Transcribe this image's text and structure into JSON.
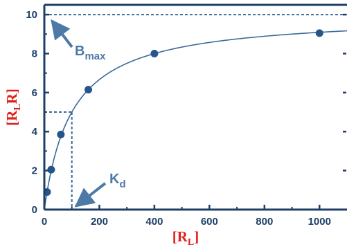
{
  "chart_data": {
    "type": "scatter",
    "title": "",
    "xlabel": {
      "main": "[R",
      "sub": "L",
      "end": "]"
    },
    "ylabel": {
      "main": "[R",
      "sub": "L",
      "end": "R]"
    },
    "xlim": [
      0,
      1100
    ],
    "ylim": [
      0,
      10.5
    ],
    "x_ticks": [
      0,
      200,
      400,
      600,
      800,
      1000
    ],
    "y_ticks": [
      0,
      2,
      4,
      6,
      8,
      10
    ],
    "x_tick_labels": [
      "0",
      "200",
      "400",
      "600",
      "800",
      "1000"
    ],
    "y_tick_labels": [
      "0",
      "2",
      "4",
      "6",
      "8",
      "10"
    ],
    "grid": false,
    "series": [
      {
        "points": [
          {
            "x": 10,
            "y": 0.9
          },
          {
            "x": 25,
            "y": 2.05
          },
          {
            "x": 60,
            "y": 3.85
          },
          {
            "x": 160,
            "y": 6.15
          },
          {
            "x": 400,
            "y": 8.0
          },
          {
            "x": 1000,
            "y": 9.05
          }
        ]
      }
    ],
    "fit_curve": {
      "model": "Bmax*x/(Kd+x)",
      "Bmax": 10,
      "Kd": 100
    },
    "reference_lines": {
      "bmax_y": 10,
      "half_y": 5,
      "kd_x": 100
    },
    "annotations": [
      {
        "id": "bmax",
        "main": "B",
        "sub": "max",
        "points_to": {
          "x": 10,
          "y": 10
        }
      },
      {
        "id": "kd",
        "main": "K",
        "sub": "d",
        "points_to": {
          "x": 100,
          "y": 0
        }
      }
    ],
    "colors": {
      "axis": "#1d3f66",
      "series": "#24558c",
      "curve": "#3a6a99",
      "reference": "#3a6a99",
      "annotation": "#4d79a6",
      "axis_title": "#e0201b"
    }
  }
}
